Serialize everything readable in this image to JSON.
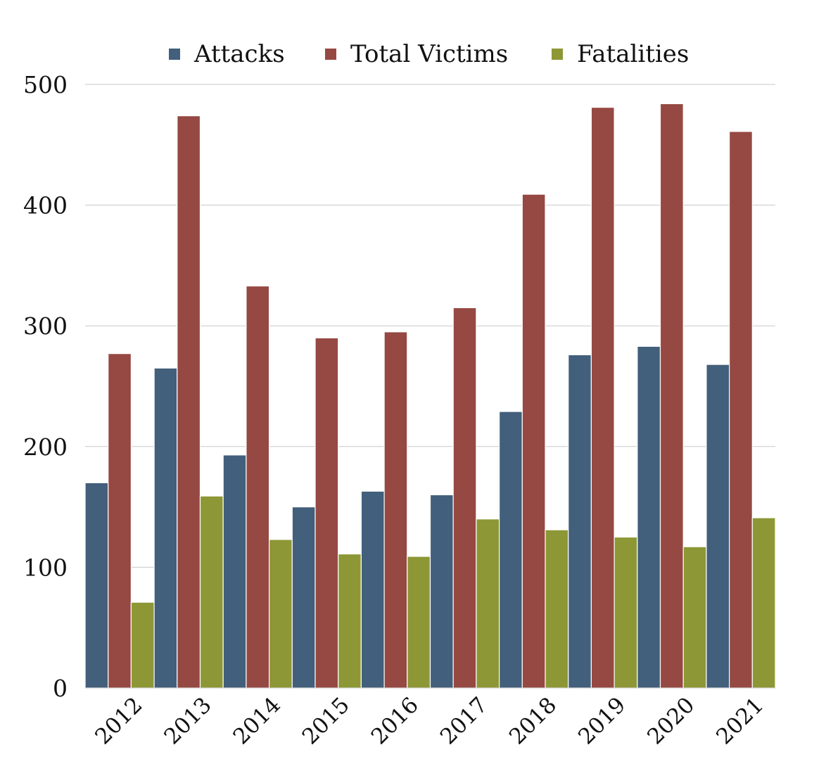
{
  "chart_data": {
    "type": "bar",
    "title": "",
    "xlabel": "",
    "ylabel": "",
    "categories": [
      "2012",
      "2013",
      "2014",
      "2015",
      "2016",
      "2017",
      "2018",
      "2019",
      "2020",
      "2021"
    ],
    "series": [
      {
        "name": "Attacks",
        "color": "#425f7c",
        "values": [
          170,
          265,
          193,
          150,
          163,
          160,
          229,
          276,
          283,
          268
        ]
      },
      {
        "name": "Total Victims",
        "color": "#964842",
        "values": [
          277,
          474,
          333,
          290,
          295,
          315,
          409,
          481,
          484,
          461
        ]
      },
      {
        "name": "Fatalities",
        "color": "#8d9735",
        "values": [
          71,
          159,
          123,
          111,
          109,
          140,
          131,
          125,
          117,
          141
        ]
      }
    ],
    "ylim": [
      0,
      500
    ],
    "yticks": [
      "0",
      "100",
      "200",
      "300",
      "400",
      "500"
    ],
    "grid": true,
    "legend_position": "top"
  }
}
